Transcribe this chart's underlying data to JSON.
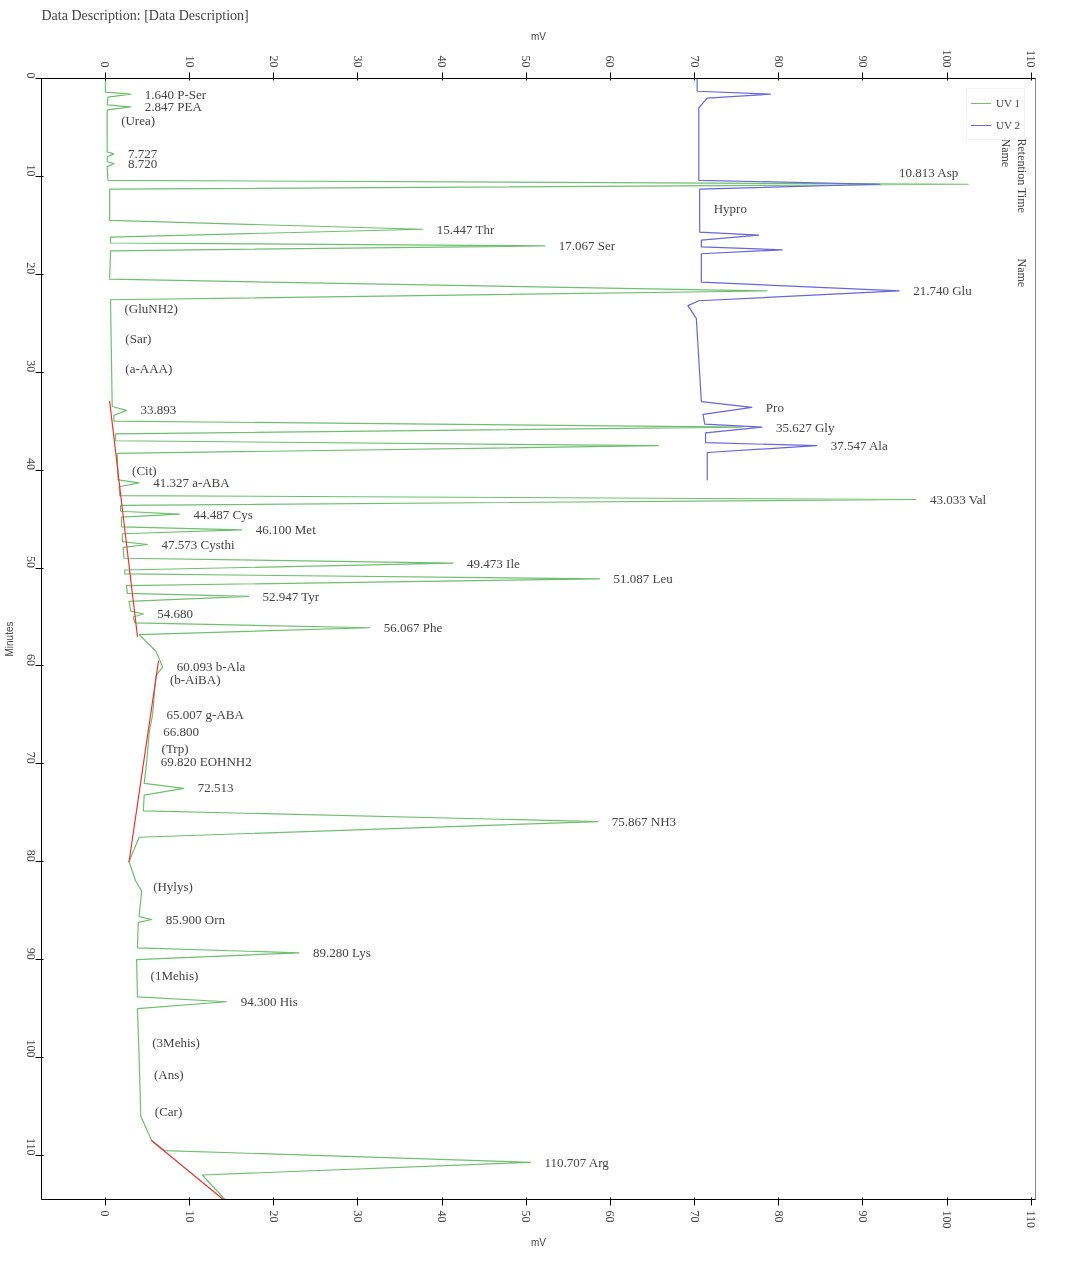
{
  "chart_data": {
    "type": "line",
    "title": "Data Description: [Data Description]",
    "xlabel": "mV",
    "x2label": "mV",
    "ylabel": "Minutes",
    "xlim": [
      -7.6,
      110.5
    ],
    "xticks": [
      0,
      10,
      20,
      30,
      40,
      50,
      60,
      70,
      80,
      90,
      100,
      110
    ],
    "x2lim": [
      -7.6,
      110.5
    ],
    "x2ticks": [
      0,
      10,
      20,
      30,
      40,
      50,
      60,
      70,
      80,
      90,
      100,
      110
    ],
    "ylim": [
      114.5,
      0
    ],
    "yticks": [
      0,
      10,
      20,
      30,
      40,
      50,
      60,
      70,
      80,
      90,
      100,
      110
    ],
    "tick_labels": "xy",
    "grid": false,
    "legend": "top right",
    "series": [
      {
        "name": "UV 1",
        "color": "#6fbf6f",
        "x": [
          0,
          0,
          3,
          0.3,
          0.2,
          3,
          0.2,
          0.2,
          1,
          0.2,
          0.2,
          1,
          0.2,
          0.3,
          102.5,
          0.5,
          0.5,
          37.7,
          0.6,
          0.6,
          52.2,
          0.6,
          0.5,
          78.6,
          0.6,
          0.8,
          2.5,
          1,
          1,
          75.6,
          1.2,
          1.2,
          65.7,
          1.4,
          1.5,
          4,
          1.6,
          1.7,
          96.3,
          1.8,
          1.8,
          8.8,
          1.9,
          1.9,
          16.2,
          2,
          2,
          5,
          2.1,
          2.2,
          41.3,
          2.3,
          2.3,
          58.7,
          2.5,
          2.6,
          17,
          2.8,
          3,
          4.5,
          3.3,
          3.5,
          31.4,
          4,
          6,
          6.8,
          6,
          5.6,
          5.2,
          4.9,
          4.6,
          9.3,
          4.6,
          4.5,
          58.5,
          4,
          2.8,
          3.6,
          4.3,
          4,
          5.5,
          3.9,
          3.8,
          23,
          3.7,
          3.8,
          14.4,
          3.8,
          4,
          4.2,
          5.5,
          7,
          50.5,
          11.5,
          14.2
        ],
        "values": [
          0,
          1.4,
          1.6,
          1.9,
          2.7,
          2.9,
          3.2,
          7.5,
          7.7,
          8.0,
          8.5,
          8.7,
          9.0,
          10.4,
          10.8,
          11.3,
          14.5,
          15.4,
          16.2,
          16.8,
          17.1,
          17.6,
          20.5,
          21.7,
          22.6,
          33.5,
          33.9,
          34.4,
          35.0,
          35.6,
          36.3,
          37.0,
          37.5,
          38.3,
          41.0,
          41.3,
          41.7,
          42.6,
          43.0,
          43.6,
          44.2,
          44.5,
          44.8,
          45.8,
          46.1,
          46.5,
          47.3,
          47.6,
          47.9,
          49.0,
          49.5,
          50.2,
          50.6,
          51.1,
          51.8,
          52.6,
          52.9,
          53.4,
          54.4,
          54.7,
          55.0,
          55.6,
          56.1,
          56.8,
          58.5,
          60.1,
          61,
          65.0,
          66.8,
          69.8,
          72.0,
          72.5,
          73.2,
          74.8,
          75.9,
          77.5,
          80,
          82,
          83,
          85.6,
          85.9,
          86.2,
          88.8,
          89.3,
          90.0,
          93.8,
          94.3,
          95.0,
          100,
          106,
          108.5,
          109.5,
          110.7,
          112.0,
          114.5
        ]
      },
      {
        "name": "UV 2",
        "color": "#6666dd",
        "x": [
          70.3,
          70.3,
          79,
          71.5,
          70.5,
          70.5,
          92,
          70.6,
          70.6,
          77.6,
          70.8,
          70.8,
          80.4,
          70.8,
          70.8,
          94.3,
          70.5,
          69.2,
          70.2,
          70.8,
          76.8,
          71,
          71.2,
          78,
          71.3,
          71.3,
          84.5,
          71.5,
          71.5
        ],
        "values": [
          0,
          1.3,
          1.6,
          2.0,
          3.0,
          10.4,
          10.8,
          11.3,
          15.7,
          16.0,
          16.5,
          17.2,
          17.5,
          17.9,
          20.8,
          21.7,
          22.7,
          23.2,
          24.5,
          33.0,
          33.6,
          34.3,
          35.3,
          35.6,
          36.2,
          37.2,
          37.5,
          38.2,
          41.0
        ]
      },
      {
        "color": "#ee3333",
        "x": [
          0.5,
          3.8,
          null,
          6.3,
          2.8,
          null,
          5.5,
          14
        ],
        "values": [
          33.0,
          57.0,
          null,
          59.5,
          80,
          null,
          108.5,
          114.5
        ]
      }
    ],
    "annotations": [
      "Retention Time",
      "Name",
      "Name",
      {
        "text": "1.640  P-Ser",
        "x": 3,
        "y": 1.6
      },
      {
        "text": "2.847  PEA",
        "x": 3,
        "y": 2.9
      },
      {
        "text": "(Urea)",
        "x": 0.2,
        "y": 4.3
      },
      {
        "text": "7.727",
        "x": 1,
        "y": 7.7
      },
      {
        "text": "8.720",
        "x": 1,
        "y": 8.7
      },
      {
        "text": "10.813  Asp",
        "x": 102.5,
        "y": 10.8
      },
      {
        "text": "15.447  Thr",
        "x": 37.7,
        "y": 15.4
      },
      {
        "text": "17.067  Ser",
        "x": 52.2,
        "y": 17.1
      },
      {
        "text": "Hypro",
        "x": 70.6,
        "y": 13.3
      },
      {
        "text": "21.740  Glu",
        "x": 94.3,
        "y": 21.7
      },
      {
        "text": "(GluNH2)",
        "x": 0.6,
        "y": 23.5
      },
      {
        "text": "(Sar)",
        "x": 0.7,
        "y": 26.6
      },
      {
        "text": "(a-AAA)",
        "x": 0.7,
        "y": 29.6
      },
      {
        "text": "33.893",
        "x": 2.5,
        "y": 33.9
      },
      {
        "text": "Pro",
        "x": 76.8,
        "y": 33.6
      },
      {
        "text": "35.627  Gly",
        "x": 78,
        "y": 35.6
      },
      {
        "text": "37.547  Ala",
        "x": 84.5,
        "y": 37.5
      },
      {
        "text": "(Cit)",
        "x": 1.5,
        "y": 40.0
      },
      {
        "text": "41.327  a-ABA",
        "x": 4,
        "y": 41.3
      },
      {
        "text": "43.033  Val",
        "x": 96.3,
        "y": 43.0
      },
      {
        "text": "44.487  Cys",
        "x": 8.8,
        "y": 44.5
      },
      {
        "text": "46.100  Met",
        "x": 16.2,
        "y": 46.1
      },
      {
        "text": "47.573  Cysthi",
        "x": 5,
        "y": 47.6
      },
      {
        "text": "49.473  Ile",
        "x": 41.3,
        "y": 49.5
      },
      {
        "text": "51.087  Leu",
        "x": 58.7,
        "y": 51.1
      },
      {
        "text": "52.947  Tyr",
        "x": 17,
        "y": 52.9
      },
      {
        "text": "54.680",
        "x": 4.5,
        "y": 54.7
      },
      {
        "text": "56.067  Phe",
        "x": 31.4,
        "y": 56.1
      },
      {
        "text": "60.093  b-Ala",
        "x": 6.8,
        "y": 60.1
      },
      {
        "text": "(b-AiBA)",
        "x": 6.0,
        "y": 61.4
      },
      {
        "text": "65.007  g-ABA",
        "x": 5.6,
        "y": 65.0
      },
      {
        "text": "66.800",
        "x": 5.2,
        "y": 66.8
      },
      {
        "text": "(Trp)",
        "x": 5.0,
        "y": 68.4
      },
      {
        "text": "69.820  EOHNH2",
        "x": 4.9,
        "y": 69.8
      },
      {
        "text": "72.513",
        "x": 9.3,
        "y": 72.5
      },
      {
        "text": "75.867  NH3",
        "x": 58.5,
        "y": 75.9
      },
      {
        "text": "(Hylys)",
        "x": 4.0,
        "y": 82.5
      },
      {
        "text": "85.900  Orn",
        "x": 5.5,
        "y": 85.9
      },
      {
        "text": "89.280  Lys",
        "x": 23,
        "y": 89.3
      },
      {
        "text": "(1Mehis)",
        "x": 3.7,
        "y": 91.6
      },
      {
        "text": "94.300  His",
        "x": 14.4,
        "y": 94.3
      },
      {
        "text": "(3Mehis)",
        "x": 3.9,
        "y": 98.5
      },
      {
        "text": "(Ans)",
        "x": 4.1,
        "y": 101.7
      },
      {
        "text": "(Car)",
        "x": 4.2,
        "y": 105.5
      },
      {
        "text": "110.707  Arg",
        "x": 50.5,
        "y": 110.7
      }
    ]
  }
}
